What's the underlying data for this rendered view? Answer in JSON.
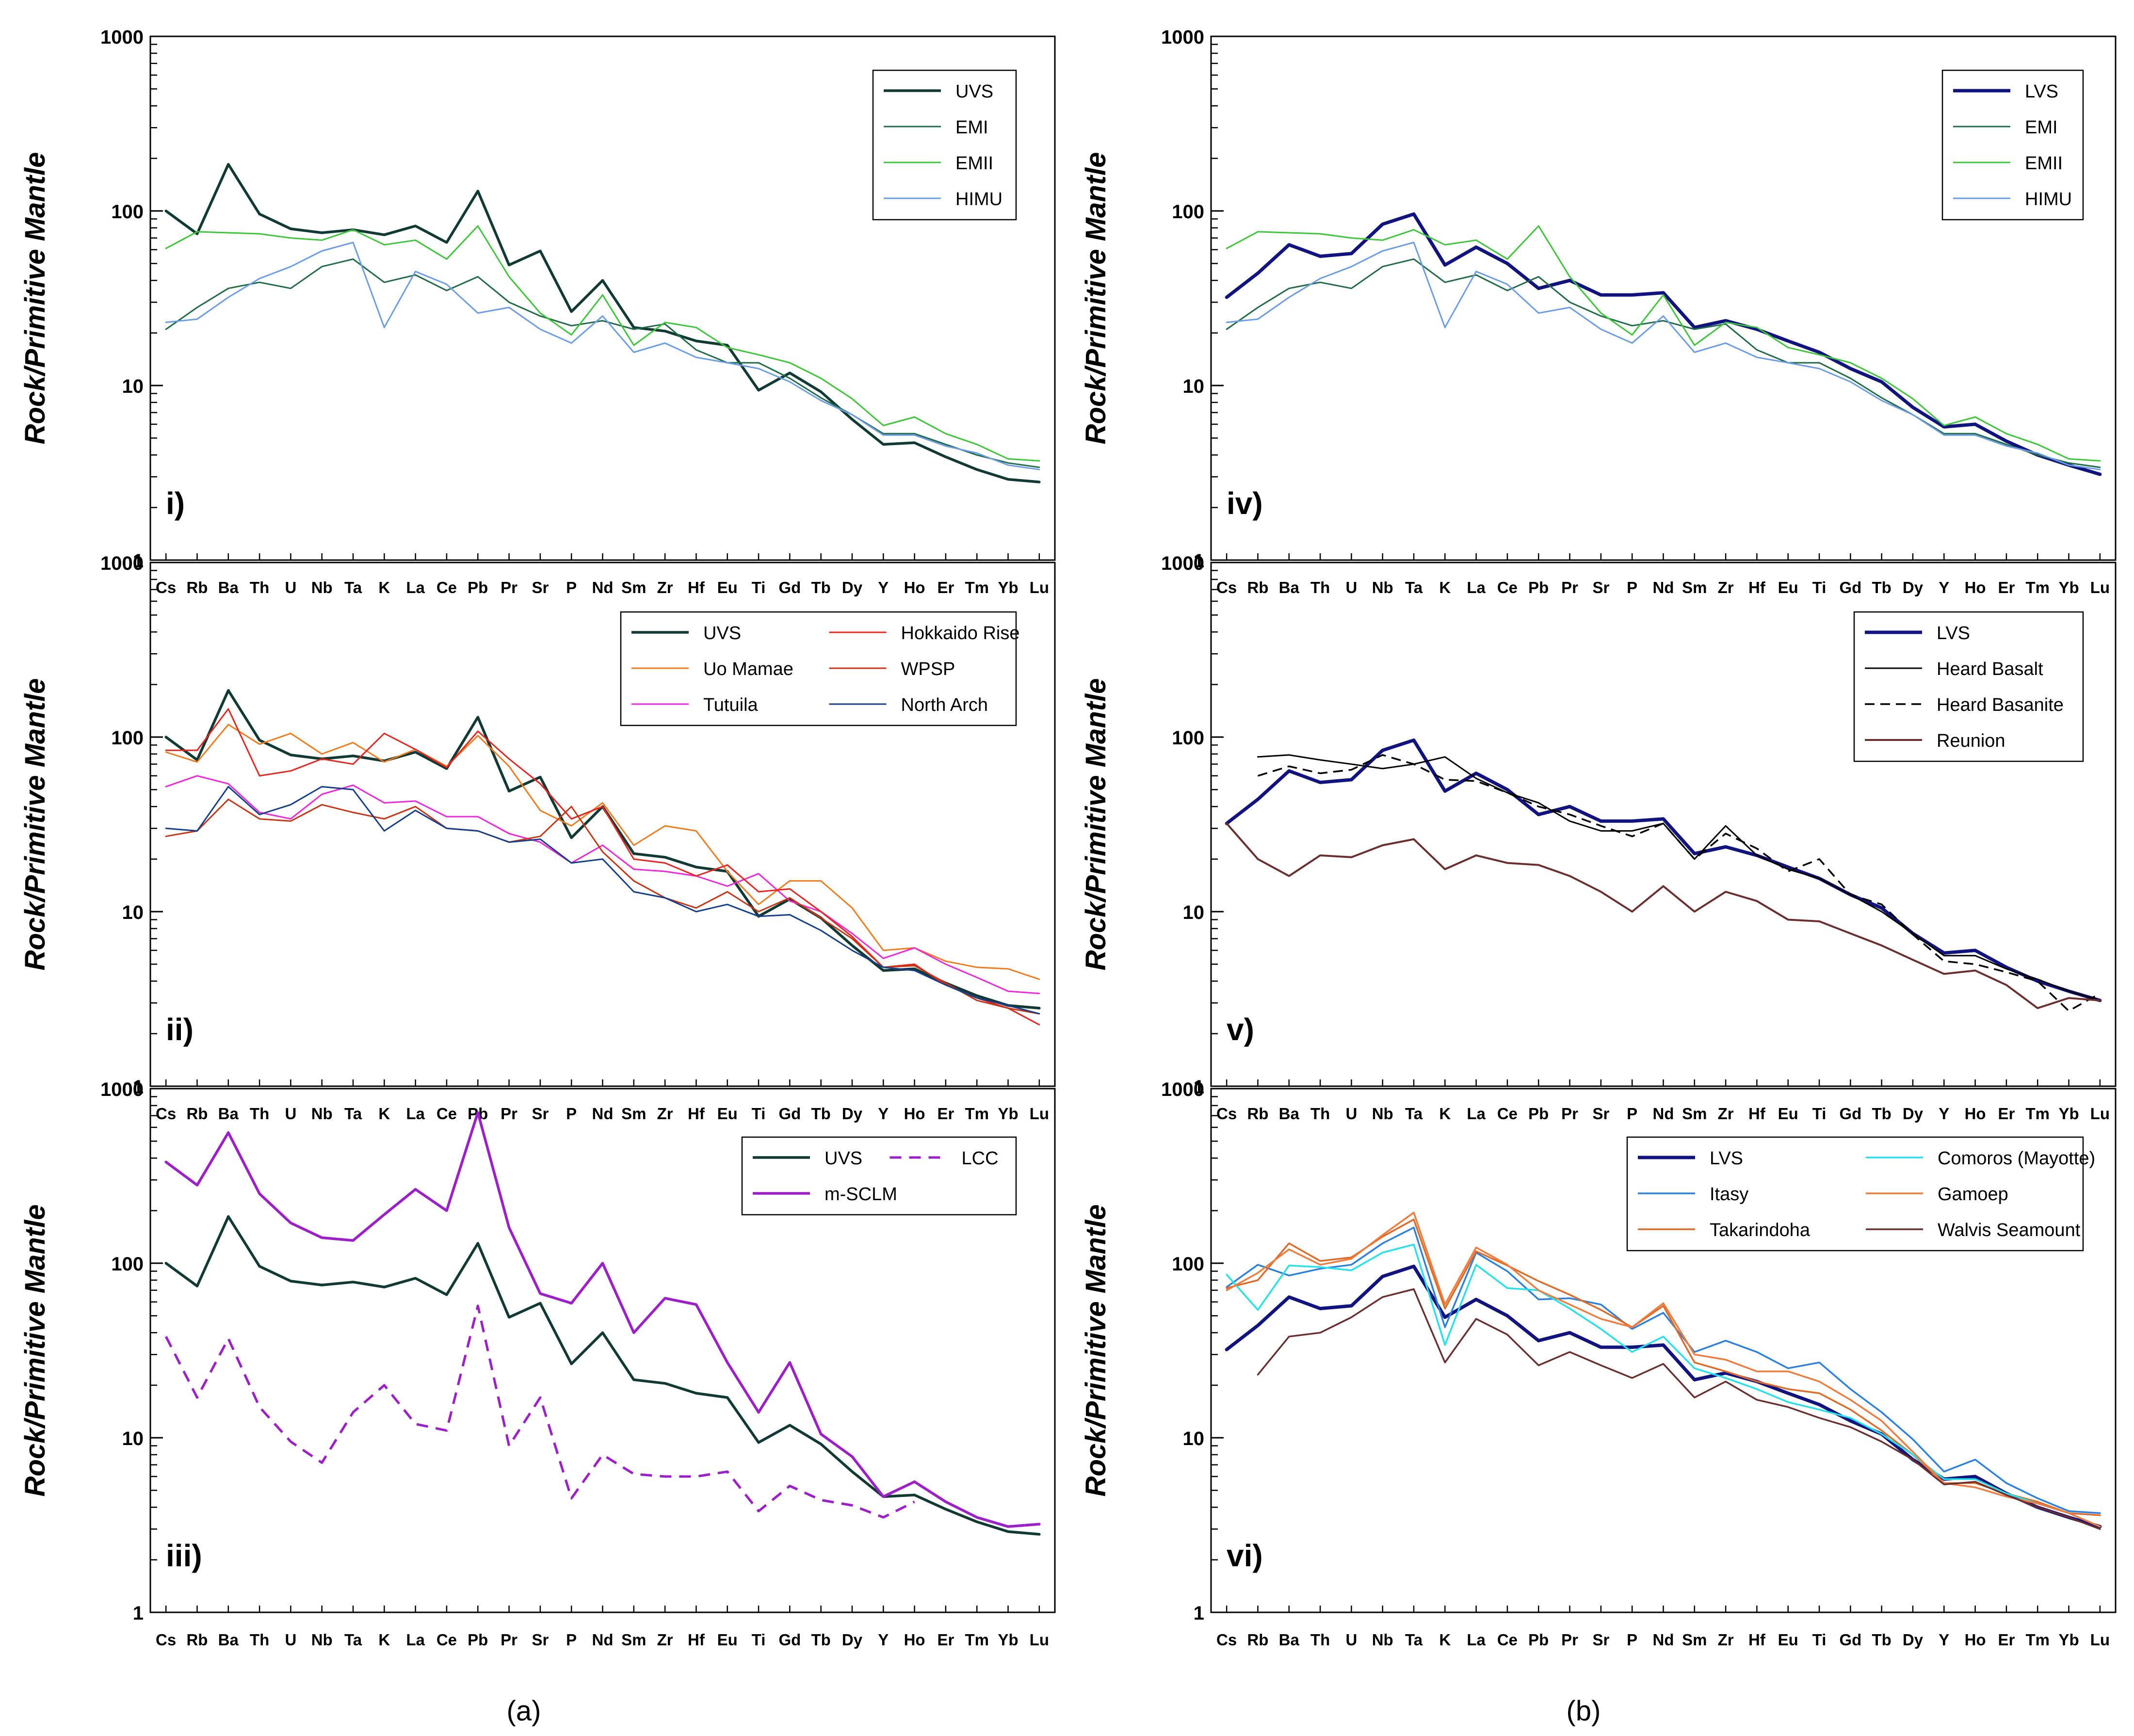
{
  "figure": {
    "elements": [
      "Cs",
      "Rb",
      "Ba",
      "Th",
      "U",
      "Nb",
      "Ta",
      "K",
      "La",
      "Ce",
      "Pb",
      "Pr",
      "Sr",
      "P",
      "Nd",
      "Sm",
      "Zr",
      "Hf",
      "Eu",
      "Ti",
      "Gd",
      "Tb",
      "Dy",
      "Y",
      "Ho",
      "Er",
      "Tm",
      "Yb",
      "Lu"
    ],
    "ylabel": "Rock/Primitive Mantle",
    "y_ticks": [
      "1",
      "10",
      "100",
      "1000"
    ],
    "caption_a": "(a)",
    "caption_b": "(b)"
  },
  "chart_data": [
    {
      "type": "line",
      "panel": "i)",
      "ylabel": "Rock/Primitive Mantle",
      "yscale": "log",
      "ylim": [
        1,
        1000
      ],
      "legend_position": "top-right",
      "series": [
        {
          "name": "UVS",
          "color": "#123a34",
          "width": 5.5,
          "values": [
            100,
            74,
            185,
            96,
            79,
            75,
            78,
            73,
            82,
            66,
            130,
            49,
            59,
            26.5,
            40,
            21.5,
            20.5,
            18,
            17,
            9.4,
            11.8,
            9.2,
            6.4,
            4.6,
            4.7,
            3.9,
            3.3,
            2.9,
            2.8
          ]
        },
        {
          "name": "EMI",
          "color": "#1e6b45",
          "width": 3,
          "values": [
            21,
            28,
            36,
            39,
            36,
            48,
            53,
            39,
            43,
            35,
            42,
            30,
            25,
            22,
            23.5,
            21,
            22.5,
            16,
            13.5,
            13.5,
            11,
            8.5,
            6.8,
            5.3,
            5.3,
            4.6,
            4,
            3.6,
            3.4
          ]
        },
        {
          "name": "EMII",
          "color": "#3dc63a",
          "width": 3,
          "values": [
            61,
            76,
            75,
            74,
            70,
            68,
            78,
            64,
            68,
            53,
            82,
            42,
            26,
            19.5,
            33,
            17,
            23,
            21.5,
            16.5,
            15,
            13.5,
            11,
            8.4,
            5.9,
            6.6,
            5.3,
            4.6,
            3.8,
            3.7
          ]
        },
        {
          "name": "HIMU",
          "color": "#6a9de6",
          "width": 3,
          "values": [
            23,
            24,
            32,
            41,
            48,
            59,
            66,
            21.5,
            45,
            38,
            26,
            28,
            21,
            17.5,
            25,
            15.5,
            17.5,
            14.5,
            13.5,
            12.5,
            10.5,
            8.2,
            6.8,
            5.2,
            5.2,
            4.5,
            4.1,
            3.5,
            3.3
          ]
        }
      ]
    },
    {
      "type": "line",
      "panel": "ii)",
      "ylabel": "Rock/Primitive Mantle",
      "yscale": "log",
      "ylim": [
        1,
        1000
      ],
      "legend_position": "top-right",
      "series": [
        {
          "name": "UVS",
          "color": "#123a34",
          "width": 5.5,
          "values": [
            100,
            74,
            185,
            96,
            79,
            75,
            78,
            73,
            82,
            66,
            130,
            49,
            59,
            26.5,
            40,
            21.5,
            20.5,
            18,
            17,
            9.4,
            11.8,
            9.2,
            6.4,
            4.6,
            4.7,
            3.9,
            3.3,
            2.9,
            2.8
          ]
        },
        {
          "name": "Uo Mamae",
          "color": "#f07c1e",
          "width": 3,
          "values": [
            82,
            72,
            118,
            91,
            105,
            80,
            93,
            72,
            85,
            68,
            102,
            68,
            38,
            31,
            42,
            24,
            31,
            29,
            17,
            11,
            15,
            15,
            10.5,
            6,
            6.2,
            5.2,
            4.8,
            4.7,
            4.1
          ]
        },
        {
          "name": "Tutuila",
          "color": "#f028dc",
          "width": 3,
          "values": [
            52,
            60,
            54,
            37,
            34,
            47,
            53,
            42,
            43,
            35,
            35,
            28,
            25,
            19,
            24,
            17.5,
            17,
            16,
            14,
            16.5,
            11.5,
            10,
            7.5,
            5.4,
            6.2,
            5,
            4.2,
            3.5,
            3.4
          ]
        },
        {
          "name": "Hokkaido Rise",
          "color": "#e8241e",
          "width": 3,
          "values": [
            84,
            84,
            145,
            60,
            64,
            75,
            70,
            105,
            85,
            67,
            108,
            75,
            54,
            34,
            40,
            20,
            19,
            16,
            18.5,
            13,
            13.5,
            10,
            7.2,
            4.8,
            5,
            3.8,
            3.2,
            2.8,
            2.25
          ]
        },
        {
          "name": "WPSP",
          "color": "#c83414",
          "width": 3,
          "values": [
            27,
            29,
            44,
            34,
            33,
            41,
            37,
            34,
            40,
            30,
            29,
            25,
            27,
            40,
            22,
            15,
            12,
            10.5,
            13,
            10,
            12,
            9.2,
            7,
            4.8,
            4.9,
            3.9,
            3.1,
            2.8,
            2.6
          ]
        },
        {
          "name": "North Arch",
          "color": "#143e8c",
          "width": 3,
          "values": [
            30,
            29,
            52,
            36,
            41,
            52,
            50,
            29,
            38,
            30,
            29,
            25,
            26,
            19,
            20,
            13,
            12,
            10,
            11,
            9.4,
            9.6,
            7.8,
            6,
            4.8,
            4.6,
            3.8,
            3.2,
            2.9,
            2.6
          ]
        }
      ]
    },
    {
      "type": "line",
      "panel": "iii)",
      "ylabel": "Rock/Primitive Mantle",
      "yscale": "log",
      "ylim": [
        1,
        1000
      ],
      "legend_position": "top-right",
      "series": [
        {
          "name": "UVS",
          "color": "#123a34",
          "width": 5.5,
          "values": [
            100,
            74,
            185,
            96,
            79,
            75,
            78,
            73,
            82,
            66,
            130,
            49,
            59,
            26.5,
            40,
            21.5,
            20.5,
            18,
            17,
            9.4,
            11.8,
            9.2,
            6.4,
            4.6,
            4.7,
            3.9,
            3.3,
            2.9,
            2.8
          ]
        },
        {
          "name": "LCC",
          "color": "#9c1fca",
          "width": 5,
          "dash": "24 16",
          "values": [
            38,
            17,
            37,
            15,
            9.5,
            7.2,
            14,
            20,
            12,
            11,
            57,
            9,
            17,
            4.5,
            8,
            6.2,
            6,
            6,
            6.4,
            3.8,
            5.3,
            4.4,
            4.1,
            3.5,
            4.3,
            null,
            null,
            null,
            null
          ]
        },
        {
          "name": "m-SCLM",
          "color": "#9c1fca",
          "width": 5.5,
          "values": [
            380,
            280,
            560,
            250,
            170,
            140,
            135,
            190,
            265,
            200,
            730,
            160,
            67,
            59,
            100,
            40,
            63,
            58,
            27,
            14,
            27,
            10.5,
            7.8,
            4.6,
            5.6,
            4.3,
            3.5,
            3.1,
            3.2
          ]
        }
      ]
    },
    {
      "type": "line",
      "panel": "iv)",
      "ylabel": "Rock/Primitive Mantle",
      "yscale": "log",
      "ylim": [
        1,
        1000
      ],
      "legend_position": "top-right",
      "series": [
        {
          "name": "LVS",
          "color": "#11137e",
          "width": 7,
          "values": [
            32,
            44,
            64,
            55,
            57,
            84,
            96,
            49,
            62,
            50,
            36,
            40,
            33,
            33,
            34,
            21.5,
            23.5,
            21,
            18,
            15.5,
            12.5,
            10.5,
            7.5,
            5.8,
            6,
            4.8,
            4,
            3.5,
            3.1
          ]
        },
        {
          "name": "EMI",
          "color": "#1e6b45",
          "width": 3,
          "values": [
            21,
            28,
            36,
            39,
            36,
            48,
            53,
            39,
            43,
            35,
            42,
            30,
            25,
            22,
            23.5,
            21,
            22.5,
            16,
            13.5,
            13.5,
            11,
            8.5,
            6.8,
            5.3,
            5.3,
            4.6,
            4,
            3.6,
            3.4
          ]
        },
        {
          "name": "EMII",
          "color": "#3dc63a",
          "width": 3,
          "values": [
            61,
            76,
            75,
            74,
            70,
            68,
            78,
            64,
            68,
            53,
            82,
            42,
            26,
            19.5,
            33,
            17,
            23,
            21.5,
            16.5,
            15,
            13.5,
            11,
            8.4,
            5.9,
            6.6,
            5.3,
            4.6,
            3.8,
            3.7
          ]
        },
        {
          "name": "HIMU",
          "color": "#6a9de6",
          "width": 3,
          "values": [
            23,
            24,
            32,
            41,
            48,
            59,
            66,
            21.5,
            45,
            38,
            26,
            28,
            21,
            17.5,
            25,
            15.5,
            17.5,
            14.5,
            13.5,
            12.5,
            10.5,
            8.2,
            6.8,
            5.2,
            5.2,
            4.5,
            4.1,
            3.5,
            3.3
          ]
        }
      ]
    },
    {
      "type": "line",
      "panel": "v)",
      "ylabel": "Rock/Primitive Mantle",
      "yscale": "log",
      "ylim": [
        1,
        1000
      ],
      "legend_position": "top-right",
      "series": [
        {
          "name": "LVS",
          "color": "#11137e",
          "width": 7,
          "values": [
            32,
            44,
            64,
            55,
            57,
            84,
            96,
            49,
            62,
            50,
            36,
            40,
            33,
            33,
            34,
            21.5,
            23.5,
            21,
            18,
            15.5,
            12.5,
            10.5,
            7.5,
            5.8,
            6,
            4.8,
            4,
            3.5,
            3.1
          ]
        },
        {
          "name": "Heard Basalt",
          "color": "#000000",
          "width": 3,
          "values": [
            null,
            77,
            79,
            74,
            70,
            66,
            70,
            77,
            58,
            48,
            42,
            33,
            29,
            29,
            32,
            20,
            31,
            21,
            17.5,
            15.5,
            12.5,
            10,
            7.5,
            5.6,
            5.6,
            4.7,
            4.1,
            3.5,
            3.1
          ]
        },
        {
          "name": "Heard Basanite",
          "color": "#000000",
          "width": 3.5,
          "dash": "20 12",
          "values": [
            null,
            60,
            68,
            62,
            65,
            79,
            70,
            57,
            56,
            48,
            40,
            36,
            31,
            27,
            32,
            20,
            28,
            23,
            17,
            20,
            12.5,
            11,
            7.4,
            5.2,
            5,
            4.5,
            4,
            2.7,
            3.4
          ]
        },
        {
          "name": "Reunion",
          "color": "#6b2e2e",
          "width": 4,
          "values": [
            32,
            20,
            16,
            21,
            20.5,
            24,
            26,
            17.5,
            21,
            19,
            18.5,
            16,
            13,
            10,
            14,
            10,
            13,
            11.5,
            9,
            8.8,
            7.5,
            6.4,
            5.3,
            4.4,
            4.6,
            3.8,
            2.8,
            3.2,
            3.1
          ]
        }
      ]
    },
    {
      "type": "line",
      "panel": "vi)",
      "ylabel": "Rock/Primitive Mantle",
      "yscale": "log",
      "ylim": [
        1,
        1000
      ],
      "legend_position": "top-right",
      "series": [
        {
          "name": "LVS",
          "color": "#11137e",
          "width": 7,
          "values": [
            32,
            44,
            64,
            55,
            57,
            84,
            96,
            49,
            62,
            50,
            36,
            40,
            33,
            33,
            34,
            21.5,
            23.5,
            21,
            18,
            15.5,
            12.5,
            10.5,
            7.5,
            5.8,
            6,
            4.8,
            4,
            3.5,
            3.1
          ]
        },
        {
          "name": "Itasy",
          "color": "#2980e0",
          "width": 3.5,
          "values": [
            73,
            98,
            85,
            93,
            98,
            130,
            160,
            43,
            115,
            90,
            62,
            63,
            58,
            42,
            52,
            31,
            36,
            31,
            25,
            27,
            19,
            14,
            9.8,
            6.4,
            7.5,
            5.5,
            4.5,
            3.8,
            3.7
          ]
        },
        {
          "name": "Takarindoha",
          "color": "#e06a28",
          "width": 3.5,
          "values": [
            72,
            80,
            130,
            103,
            108,
            142,
            178,
            55,
            117,
            97,
            79,
            66,
            54,
            43,
            57,
            27,
            24,
            21,
            19,
            18,
            14.5,
            11,
            8,
            5.5,
            5.5,
            4.8,
            4.3,
            3.7,
            3.6
          ]
        },
        {
          "name": "Comoros (Mayotte)",
          "color": "#25e2ea",
          "width": 3.5,
          "values": [
            86,
            54,
            97,
            95,
            91,
            115,
            128,
            34,
            98,
            72,
            70,
            55,
            42,
            31,
            38,
            25,
            22,
            19,
            16,
            14.5,
            13,
            10.5,
            8,
            5.8,
            5.8,
            4.8,
            4.2,
            3.7,
            3.1
          ]
        },
        {
          "name": "Gamoep",
          "color": "#f07b3c",
          "width": 3.5,
          "values": [
            70,
            88,
            120,
            98,
            106,
            145,
            195,
            58,
            123,
            98,
            70,
            58,
            48,
            43,
            59,
            30,
            28,
            24,
            24,
            21,
            16.5,
            12.5,
            8.3,
            5.5,
            5.2,
            4.6,
            4.2,
            3.7,
            3.1
          ]
        },
        {
          "name": "Walvis Seamount",
          "color": "#6b2e2e",
          "width": 3.5,
          "values": [
            null,
            23,
            38,
            40,
            49,
            64,
            71,
            27,
            48,
            39,
            26,
            31,
            26,
            22,
            26.5,
            17,
            21,
            16.5,
            15,
            13,
            11.5,
            9.5,
            7.5,
            5.4,
            5.6,
            4.7,
            4,
            3.5,
            3
          ]
        }
      ]
    }
  ]
}
